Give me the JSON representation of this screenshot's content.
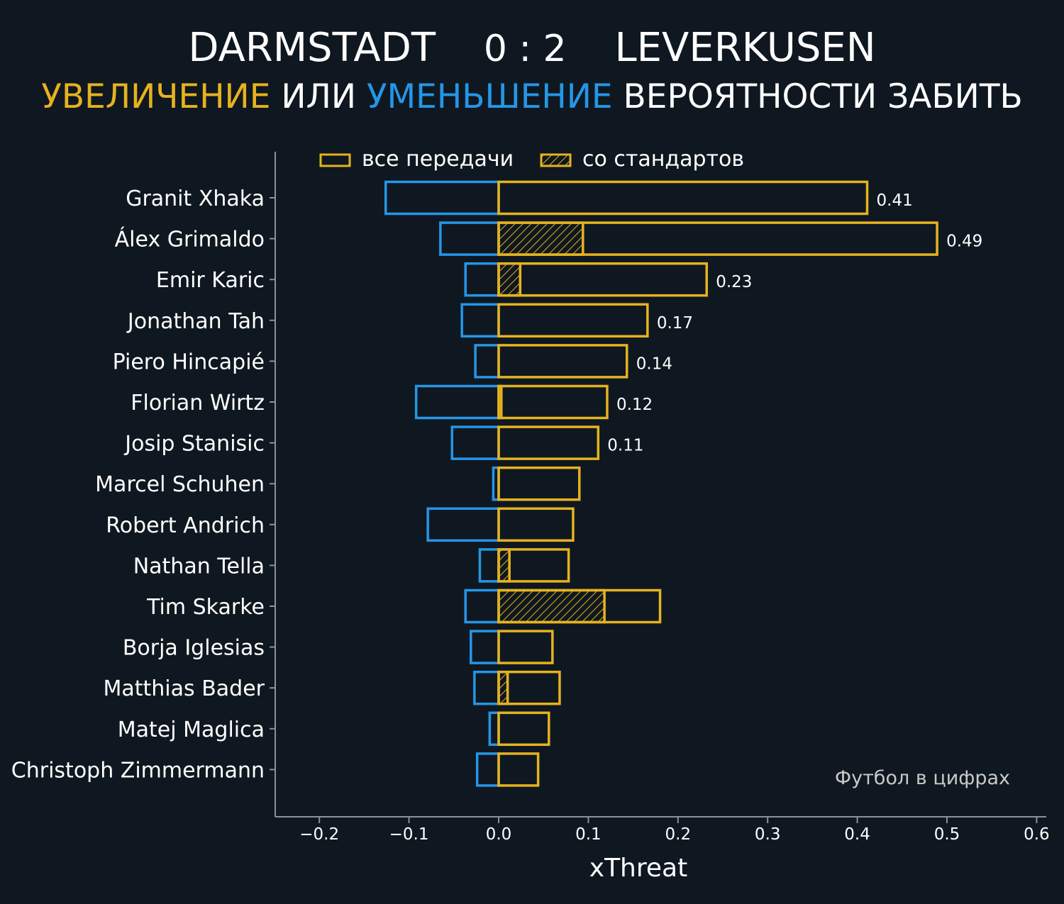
{
  "header": {
    "home_team": "DARMSTADT",
    "score": "0 : 2",
    "away_team": "LEVERKUSEN",
    "subtitle_increase": "УВЕЛИЧЕНИЕ",
    "subtitle_or": " ИЛИ ",
    "subtitle_decrease": "УМЕНЬШЕНИЕ",
    "subtitle_rest": " ВЕРОЯТНОСТИ ЗАБИТЬ"
  },
  "legend": {
    "all_passes": "все передачи",
    "set_pieces": "со стандартов"
  },
  "credit": "Футбол в цифрах",
  "colors": {
    "background": "#0f1820",
    "positive": "#e6b21f",
    "negative": "#2596e8",
    "axis": "#8a9298",
    "text": "#ffffff"
  },
  "chart_data": {
    "type": "bar",
    "orientation": "horizontal",
    "xlabel": "xThreat",
    "xlim": [
      -0.25,
      0.61
    ],
    "xticks": [
      "−0.2",
      "−0.1",
      "0.0",
      "0.1",
      "0.2",
      "0.3",
      "0.4",
      "0.5",
      "0.6"
    ],
    "xtick_values": [
      -0.2,
      -0.1,
      0.0,
      0.1,
      0.2,
      0.3,
      0.4,
      0.5,
      0.6
    ],
    "categories": [
      "Granit Xhaka",
      "Álex Grimaldo",
      "Emir Karic",
      "Jonathan Tah",
      "Piero Hincapié",
      "Florian Wirtz",
      "Josip Stanisic",
      "Marcel Schuhen",
      "Robert Andrich",
      "Nathan Tella",
      "Tim Skarke",
      "Borja Iglesias",
      "Matthias Bader",
      "Matej Maglica",
      "Christoph Zimmermann"
    ],
    "series": [
      {
        "name": "все передачи",
        "role": "positive",
        "values": [
          0.411,
          0.489,
          0.232,
          0.166,
          0.143,
          0.121,
          0.111,
          0.09,
          0.083,
          0.078,
          0.18,
          0.06,
          0.068,
          0.056,
          0.044
        ]
      },
      {
        "name": "со стандартов",
        "role": "set_piece",
        "values": [
          0,
          0.094,
          0.024,
          0,
          0,
          0.003,
          0,
          0,
          0,
          0.012,
          0.118,
          0,
          0.01,
          0,
          0
        ]
      },
      {
        "role": "negative",
        "values": [
          -0.126,
          -0.065,
          -0.037,
          -0.041,
          -0.026,
          -0.092,
          -0.052,
          -0.006,
          -0.079,
          -0.021,
          -0.037,
          -0.031,
          -0.027,
          -0.01,
          -0.024
        ]
      }
    ],
    "value_labels": [
      "0.41",
      "0.49",
      "0.23",
      "0.17",
      "0.14",
      "0.12",
      "0.11",
      "",
      "",
      "",
      "",
      "",
      "",
      "",
      ""
    ],
    "legend_position": "top-left",
    "grid": false
  }
}
